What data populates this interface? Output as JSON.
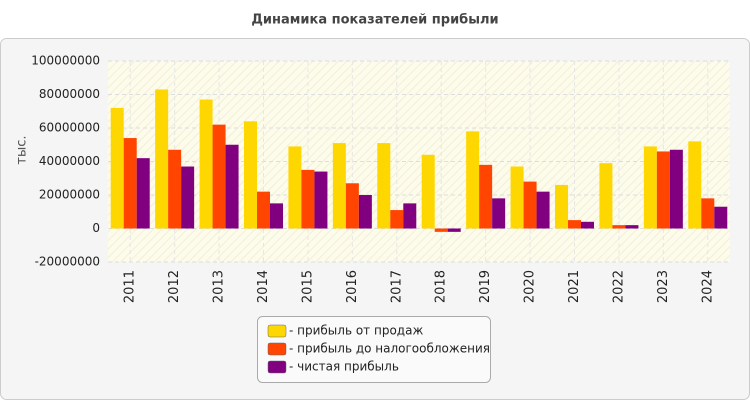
{
  "chart_data": {
    "type": "bar",
    "title": "Динамика показателей прибыли",
    "y_label": "тыс.",
    "categories": [
      "2011",
      "2012",
      "2013",
      "2014",
      "2015",
      "2016",
      "2017",
      "2018",
      "2019",
      "2020",
      "2021",
      "2022",
      "2023",
      "2024"
    ],
    "series": [
      {
        "name": "- прибыль от продаж",
        "color": "#FFD700",
        "values": [
          72000000,
          83000000,
          77000000,
          64000000,
          49000000,
          51000000,
          51000000,
          44000000,
          58000000,
          37000000,
          26000000,
          39000000,
          49000000,
          52000000
        ]
      },
      {
        "name": "- прибыль до налогообложения",
        "color": "#FF4500",
        "values": [
          54000000,
          47000000,
          62000000,
          22000000,
          35000000,
          27000000,
          11000000,
          -2000000,
          38000000,
          28000000,
          5000000,
          2000000,
          46000000,
          18000000
        ]
      },
      {
        "name": "- чистая прибыль",
        "color": "#800080",
        "values": [
          42000000,
          37000000,
          50000000,
          15000000,
          34000000,
          20000000,
          15000000,
          -2000000,
          18000000,
          22000000,
          4000000,
          2000000,
          47000000,
          13000000
        ]
      }
    ],
    "ylim": [
      -20000000,
      100000000
    ],
    "yticks": [
      -20000000,
      0,
      20000000,
      40000000,
      60000000,
      80000000,
      100000000
    ],
    "grid": true
  }
}
